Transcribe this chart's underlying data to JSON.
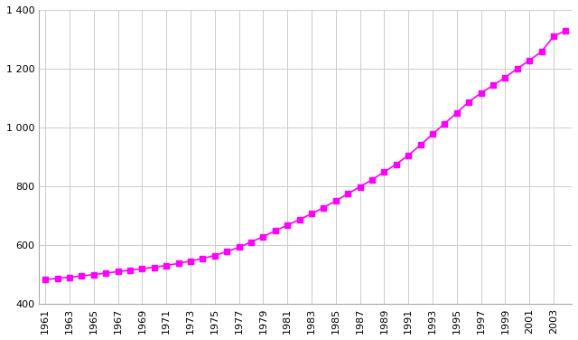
{
  "years": [
    1961,
    1962,
    1963,
    1964,
    1965,
    1966,
    1967,
    1968,
    1969,
    1970,
    1971,
    1972,
    1973,
    1974,
    1975,
    1976,
    1977,
    1978,
    1979,
    1980,
    1981,
    1982,
    1983,
    1984,
    1985,
    1986,
    1987,
    1988,
    1989,
    1990,
    1991,
    1992,
    1993,
    1994,
    1995,
    1996,
    1997,
    1998,
    1999,
    2000,
    2001,
    2002,
    2003,
    2004
  ],
  "values": [
    482,
    486,
    490,
    494,
    499,
    504,
    509,
    514,
    519,
    524,
    530,
    537,
    545,
    554,
    564,
    577,
    592,
    610,
    628,
    648,
    667,
    686,
    706,
    727,
    750,
    774,
    798,
    822,
    848,
    875,
    905,
    940,
    977,
    1013,
    1050,
    1087,
    1117,
    1143,
    1170,
    1200,
    1228,
    1258,
    1310,
    1330
  ],
  "line_color": "#ff00ff",
  "marker": "s",
  "marker_size": 4,
  "bg_color": "#ffffff",
  "grid_color": "#cccccc",
  "xlim": [
    1960.5,
    2004.5
  ],
  "ylim": [
    400,
    1400
  ],
  "yticks": [
    400,
    600,
    800,
    1000,
    1200,
    1400
  ],
  "ytick_labels": [
    "400",
    "600",
    "800",
    "1 000",
    "1 200",
    "1 400"
  ],
  "xticks": [
    1961,
    1963,
    1965,
    1967,
    1969,
    1971,
    1973,
    1975,
    1977,
    1979,
    1981,
    1983,
    1985,
    1987,
    1989,
    1991,
    1993,
    1995,
    1997,
    1999,
    2001,
    2003
  ]
}
